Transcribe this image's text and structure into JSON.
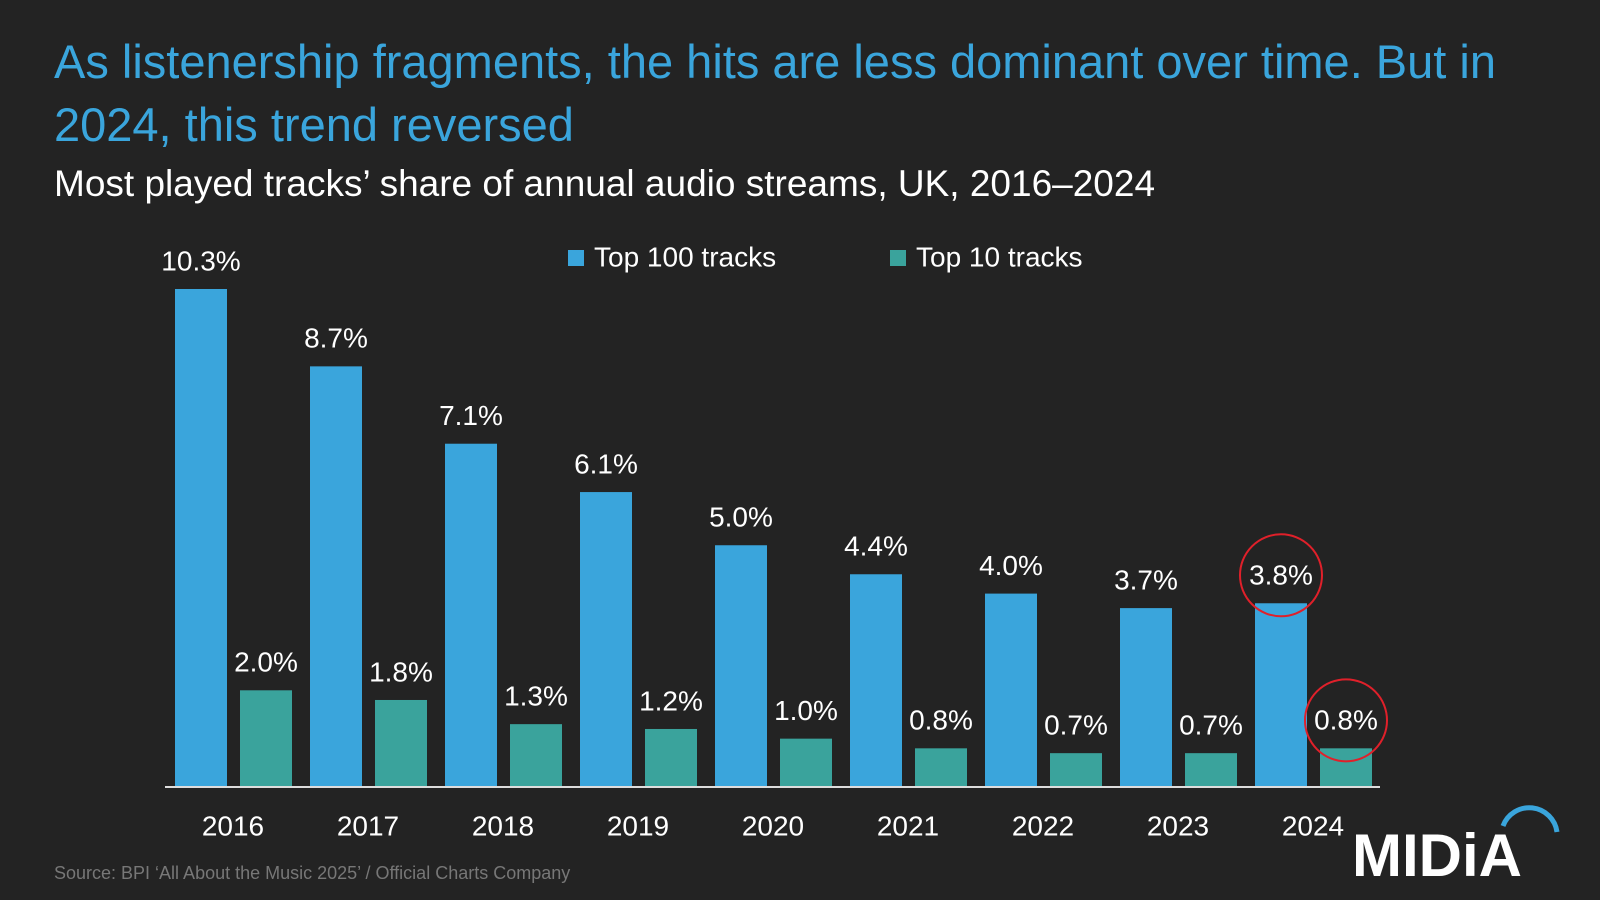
{
  "chart_data": {
    "type": "bar",
    "title": "As listenership fragments, the hits are less dominant over time. But in 2024, this trend reversed",
    "subtitle": "Most played tracks’ share of annual audio streams, UK, 2016–2024",
    "categories": [
      "2016",
      "2017",
      "2018",
      "2019",
      "2020",
      "2021",
      "2022",
      "2023",
      "2024"
    ],
    "series": [
      {
        "name": "Top 100 tracks",
        "color": "#3aa5dc",
        "values": [
          10.3,
          8.7,
          7.1,
          6.1,
          5.0,
          4.4,
          4.0,
          3.7,
          3.8
        ],
        "value_labels": [
          "10.3%",
          "8.7%",
          "7.1%",
          "6.1%",
          "5.0%",
          "4.4%",
          "4.0%",
          "3.7%",
          "3.8%"
        ]
      },
      {
        "name": "Top 10 tracks",
        "color": "#3aa39c",
        "values": [
          2.0,
          1.8,
          1.3,
          1.2,
          1.0,
          0.8,
          0.7,
          0.7,
          0.8
        ],
        "value_labels": [
          "2.0%",
          "1.8%",
          "1.3%",
          "1.2%",
          "1.0%",
          "0.8%",
          "0.7%",
          "0.7%",
          "0.8%"
        ]
      }
    ],
    "source": "Source: BPI ‘All About the Music 2025’ / Official Charts Company",
    "logo": "MIDiA"
  }
}
